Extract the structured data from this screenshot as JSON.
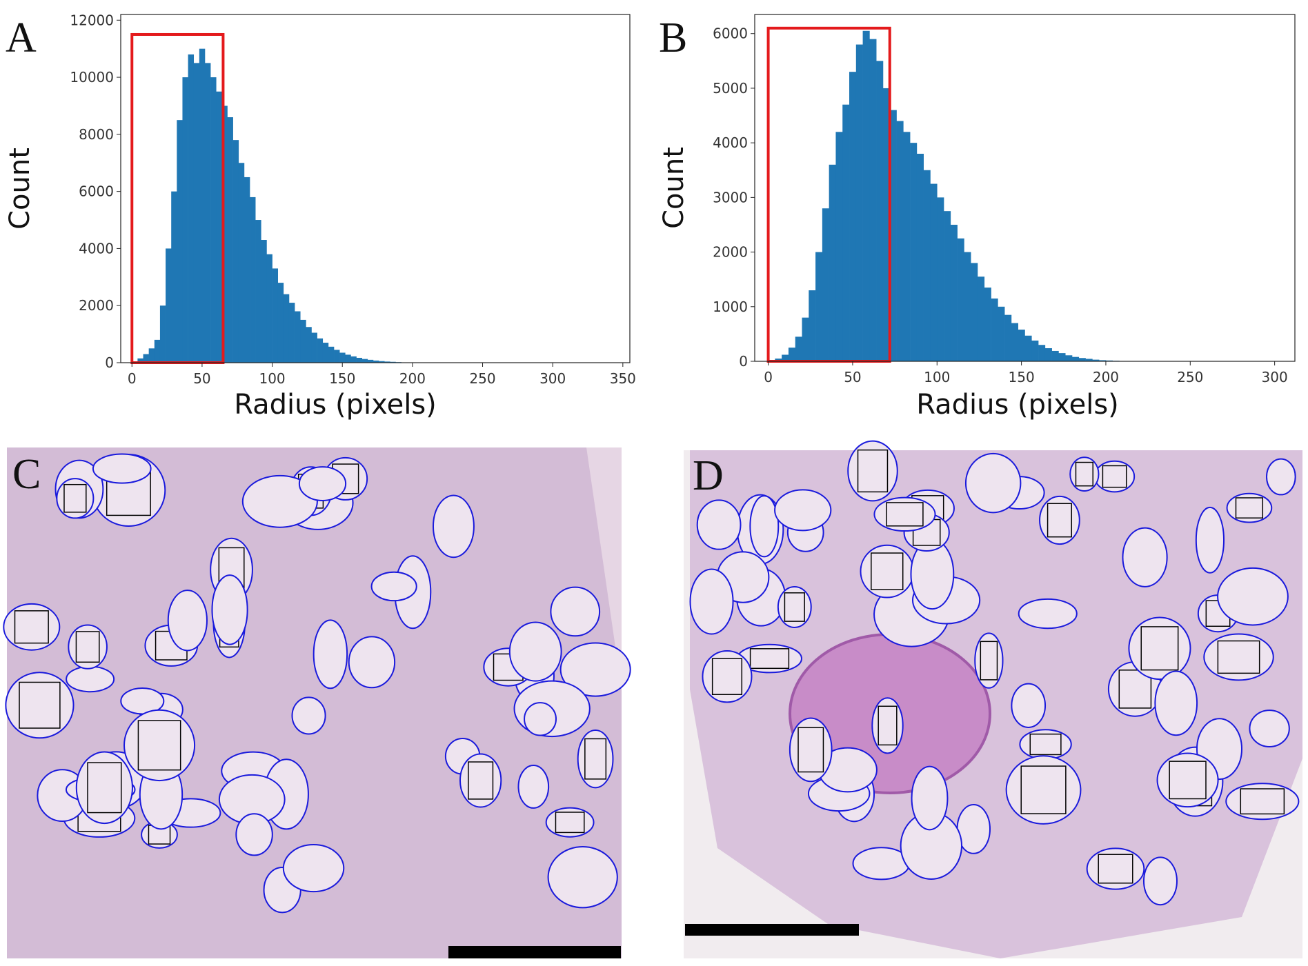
{
  "chart_data": [
    {
      "type": "histogram",
      "panel_label": "A",
      "x_label": "Radius (pixels)",
      "y_label": "Count",
      "color": "#1f77b4",
      "bins": [
        0,
        4,
        8,
        12,
        16,
        20,
        24,
        28,
        32,
        36,
        40,
        44,
        48,
        52,
        56,
        60,
        64,
        68,
        72,
        76,
        80,
        84,
        88,
        92,
        96,
        100,
        104,
        108,
        112,
        116,
        120,
        124,
        128,
        132,
        136,
        140,
        144,
        148,
        152,
        156,
        160,
        164,
        168,
        172,
        176,
        180,
        184,
        188,
        192,
        196,
        200
      ],
      "values": [
        30,
        150,
        300,
        500,
        800,
        2000,
        4000,
        6000,
        8500,
        10000,
        10800,
        10500,
        11000,
        10500,
        10000,
        9500,
        9000,
        8600,
        7800,
        7000,
        6500,
        5800,
        5000,
        4300,
        3800,
        3300,
        2800,
        2400,
        2100,
        1800,
        1500,
        1250,
        1050,
        850,
        700,
        560,
        450,
        350,
        280,
        220,
        170,
        130,
        100,
        75,
        55,
        40,
        30,
        20,
        10,
        5
      ],
      "xlim": [
        -8,
        355
      ],
      "xticks": [
        0,
        50,
        100,
        150,
        200,
        250,
        300,
        350
      ],
      "ylim": [
        0,
        12200
      ],
      "yticks": [
        0,
        2000,
        4000,
        6000,
        8000,
        10000,
        12000
      ],
      "highlight_box": {
        "x": [
          0,
          65
        ],
        "y": [
          0,
          11500
        ],
        "color": "#e41a1c"
      }
    },
    {
      "type": "histogram",
      "panel_label": "B",
      "x_label": "Radius (pixels)",
      "y_label": "Count",
      "color": "#1f77b4",
      "bins": [
        0,
        4,
        8,
        12,
        16,
        20,
        24,
        28,
        32,
        36,
        40,
        44,
        48,
        52,
        56,
        60,
        64,
        68,
        72,
        76,
        80,
        84,
        88,
        92,
        96,
        100,
        104,
        108,
        112,
        116,
        120,
        124,
        128,
        132,
        136,
        140,
        144,
        148,
        152,
        156,
        160,
        164,
        168,
        172,
        176,
        180,
        184,
        188,
        192,
        196,
        200,
        204,
        208,
        212
      ],
      "values": [
        20,
        50,
        120,
        250,
        450,
        800,
        1300,
        2000,
        2800,
        3600,
        4200,
        4700,
        5300,
        5800,
        6050,
        5900,
        5500,
        5000,
        4600,
        4400,
        4200,
        4000,
        3800,
        3500,
        3250,
        3000,
        2750,
        2500,
        2250,
        2000,
        1800,
        1550,
        1350,
        1150,
        1000,
        850,
        700,
        580,
        470,
        380,
        300,
        240,
        190,
        150,
        110,
        80,
        60,
        45,
        30,
        20,
        15,
        10,
        6
      ],
      "xlim": [
        -8,
        312
      ],
      "xticks": [
        0,
        50,
        100,
        150,
        200,
        250,
        300
      ],
      "ylim": [
        0,
        6350
      ],
      "yticks": [
        0,
        1000,
        2000,
        3000,
        4000,
        5000,
        6000
      ],
      "highlight_box": {
        "x": [
          0,
          72
        ],
        "y": [
          0,
          6100
        ],
        "color": "#e41a1c"
      }
    }
  ],
  "panels": [
    {
      "label": "C"
    },
    {
      "label": "D"
    }
  ]
}
